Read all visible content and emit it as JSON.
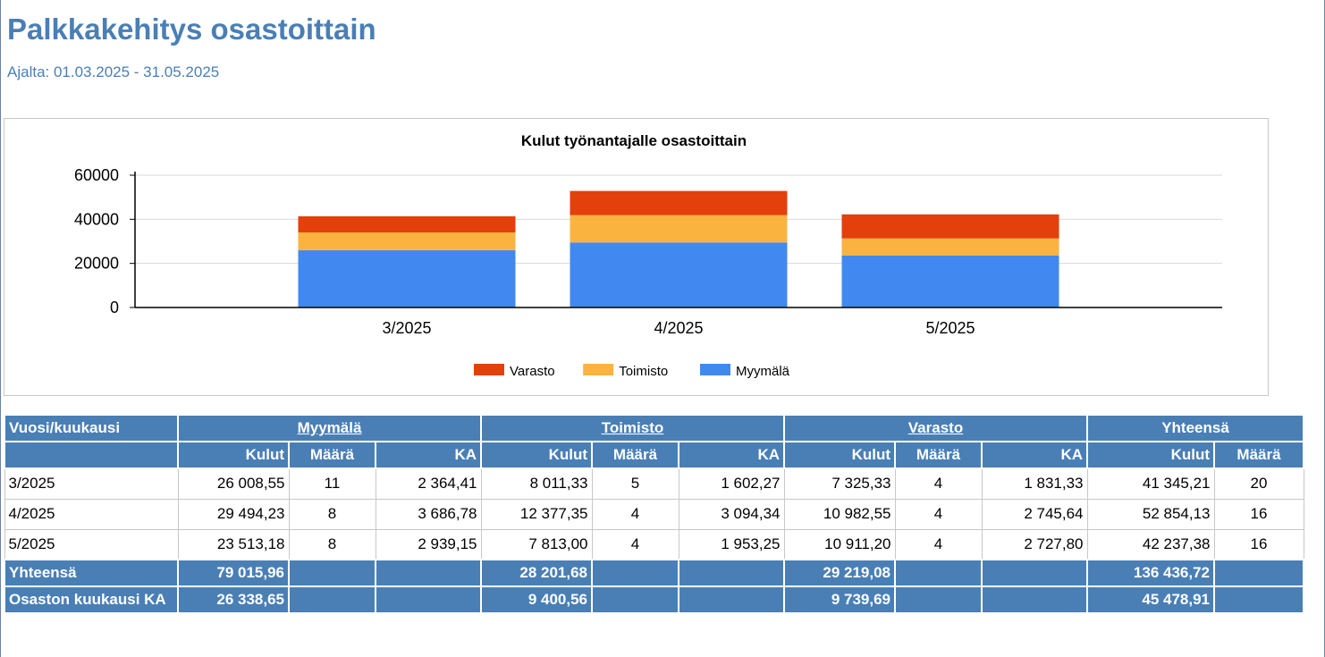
{
  "report": {
    "title": "Palkkakehitys osastoittain",
    "period": "Ajalta: 01.03.2025 - 31.05.2025"
  },
  "colors": {
    "accent": "#4a7fb5",
    "Myymälä": "#4189f0",
    "Toimisto": "#fbb340",
    "Varasto": "#e3400c"
  },
  "chart_data": {
    "type": "bar",
    "stacked": true,
    "title": "Kulut työnantajalle osastoittain",
    "categories": [
      "3/2025",
      "4/2025",
      "5/2025"
    ],
    "series": [
      {
        "name": "Myymälä",
        "values": [
          26008.55,
          29494.23,
          23513.18
        ]
      },
      {
        "name": "Toimisto",
        "values": [
          8011.33,
          12377.35,
          7813.0
        ]
      },
      {
        "name": "Varasto",
        "values": [
          7325.33,
          10982.55,
          10911.2
        ]
      }
    ],
    "legend_order": [
      "Varasto",
      "Toimisto",
      "Myymälä"
    ],
    "y_ticks": [
      "60000",
      "40000",
      "20000",
      "0"
    ],
    "ylim": [
      0,
      60000
    ],
    "grid": true,
    "legend_position": "bottom"
  },
  "table": {
    "row_header_label": "Vuosi/kuukausi",
    "groups": {
      "myymala": "Myymälä",
      "toimisto": "Toimisto",
      "varasto": "Varasto",
      "yhteensa": "Yhteensä"
    },
    "subheaders": {
      "kulut": "Kulut",
      "maara": "Määrä",
      "ka": "KA"
    },
    "rows": [
      {
        "period": "3/2025",
        "m_kulut": "26 008,55",
        "m_maara": "11",
        "m_ka": "2 364,41",
        "t_kulut": "8 011,33",
        "t_maara": "5",
        "t_ka": "1 602,27",
        "v_kulut": "7 325,33",
        "v_maara": "4",
        "v_ka": "1 831,33",
        "y_kulut": "41 345,21",
        "y_maara": "20"
      },
      {
        "period": "4/2025",
        "m_kulut": "29 494,23",
        "m_maara": "8",
        "m_ka": "3 686,78",
        "t_kulut": "12 377,35",
        "t_maara": "4",
        "t_ka": "3 094,34",
        "v_kulut": "10 982,55",
        "v_maara": "4",
        "v_ka": "2 745,64",
        "y_kulut": "52 854,13",
        "y_maara": "16"
      },
      {
        "period": "5/2025",
        "m_kulut": "23 513,18",
        "m_maara": "8",
        "m_ka": "2 939,15",
        "t_kulut": "7 813,00",
        "t_maara": "4",
        "t_ka": "1 953,25",
        "v_kulut": "10 911,20",
        "v_maara": "4",
        "v_ka": "2 727,80",
        "y_kulut": "42 237,38",
        "y_maara": "16"
      }
    ],
    "total": {
      "label": "Yhteensä",
      "m_kulut": "79 015,96",
      "t_kulut": "28 201,68",
      "v_kulut": "29 219,08",
      "y_kulut": "136 436,72"
    },
    "average": {
      "label": "Osaston kuukausi KA",
      "m_kulut": "26 338,65",
      "t_kulut": "9 400,56",
      "v_kulut": "9 739,69",
      "y_kulut": "45 478,91"
    }
  }
}
